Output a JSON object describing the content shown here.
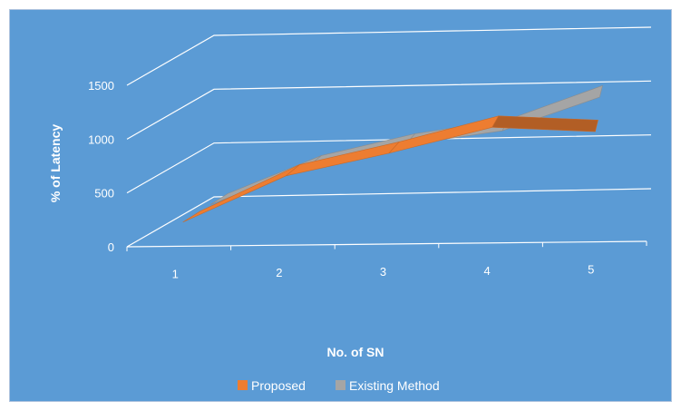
{
  "chart_data": {
    "type": "line",
    "view": "3d",
    "title": "",
    "xlabel": "No. of SN",
    "ylabel": "% of Latency",
    "categories": [
      "1",
      "2",
      "3",
      "4",
      "5"
    ],
    "yticks": [
      "0",
      "500",
      "1000",
      "1500"
    ],
    "ylim": [
      0,
      1500
    ],
    "grid": true,
    "legend_position": "bottom",
    "series": [
      {
        "name": "Proposed",
        "values": [
          200,
          620,
          820,
          1050,
          1000
        ],
        "color": "#ed7d31"
      },
      {
        "name": "Existing Method",
        "values": [
          200,
          540,
          730,
          850,
          1150
        ],
        "color": "#a5a5a5"
      }
    ],
    "background_color": "#5b9bd5"
  }
}
